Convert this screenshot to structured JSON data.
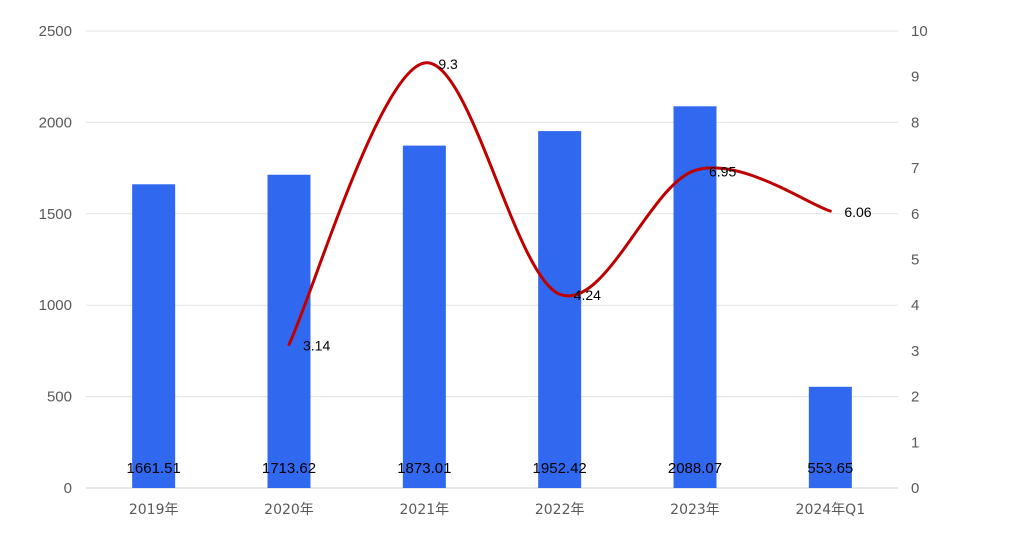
{
  "chart_data": {
    "type": "bar",
    "categories": [
      "2019年",
      "2020年",
      "2021年",
      "2022年",
      "2023年",
      "2024年Q1"
    ],
    "series": [
      {
        "type": "bar",
        "axis": "left",
        "color": "#3068F0",
        "values": [
          1661.51,
          1713.62,
          1873.01,
          1952.42,
          2088.07,
          553.65
        ],
        "labels": [
          "1661.51",
          "1713.62",
          "1873.01",
          "1952.42",
          "2088.07",
          "553.65"
        ]
      },
      {
        "type": "line",
        "axis": "right",
        "color": "#C00000",
        "smooth": true,
        "values": [
          null,
          3.14,
          9.3,
          4.24,
          6.95,
          6.06
        ],
        "labels": [
          "",
          "3.14",
          "9.3",
          "4.24",
          "6.95",
          "6.06"
        ]
      }
    ],
    "y_left": {
      "min": 0,
      "max": 2500,
      "ticks": [
        "0",
        "500",
        "1000",
        "1500",
        "2000",
        "2500"
      ]
    },
    "y_right": {
      "min": 0,
      "max": 10,
      "ticks": [
        "0",
        "1",
        "2",
        "3",
        "4",
        "5",
        "6",
        "7",
        "8",
        "9",
        "10"
      ]
    },
    "title": "",
    "xlabel": "",
    "ylabel": "",
    "grid": true,
    "legend": "none"
  }
}
